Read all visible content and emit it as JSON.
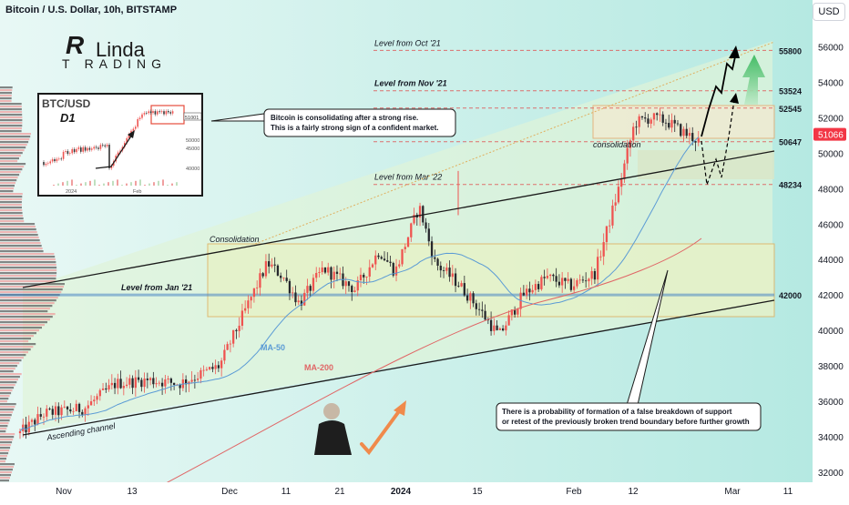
{
  "header": {
    "title": "Bitcoin / U.S. Dollar, 10h, BITSTAMP",
    "currency": "USD"
  },
  "logo": {
    "mark": "R",
    "text1": "Linda",
    "text2": "T",
    "text3": "RADING"
  },
  "inset": {
    "title": "BTC/USD",
    "timeframe": "D1",
    "price_tag": "51001",
    "ticks": [
      "50000",
      "45000",
      "40000"
    ],
    "xlabels": [
      "2024",
      "Feb"
    ]
  },
  "callouts": {
    "top": [
      "Bitcoin is consolidating after a strong rise.",
      "This is a fairly strong sign of a confident market."
    ],
    "bottom": [
      "There is a probability of formation of a false breakdown of support",
      "or retest of the previously broken trend boundary before further growth"
    ]
  },
  "colors": {
    "up": "#ef5350",
    "down": "#26282d",
    "channel_fill": "#dff3d8",
    "box_fill": "#e6f2c8",
    "box_border": "#e0b060",
    "ma50": "#5b9bd5",
    "ma200": "#e06666",
    "level": "#e05050",
    "level_blue": "#4a86c5",
    "current_price_bg": "#f23645"
  },
  "chart_data": {
    "type": "candlestick",
    "title": "Bitcoin / U.S. Dollar, 10h, BITSTAMP",
    "y_axis": {
      "ticks": [
        32000,
        34000,
        36000,
        38000,
        40000,
        42000,
        44000,
        46000,
        48000,
        50000,
        52000,
        54000,
        56000
      ],
      "range": [
        30800,
        57500
      ],
      "side": "right",
      "unit": "USD"
    },
    "x_axis": {
      "labels": [
        "Nov",
        "13",
        "Dec",
        "11",
        "21",
        "2024",
        "15",
        "Feb",
        "12",
        "Mar",
        "11"
      ],
      "bold_label": "2024"
    },
    "price_levels": [
      {
        "label": "Level from Oct '21",
        "value": 55800,
        "style": "dashed"
      },
      {
        "label": "Level from Nov '21",
        "value": 53524,
        "style": "dashed"
      },
      {
        "label": "",
        "value": 52545,
        "style": "dashed"
      },
      {
        "label": "",
        "value": 50647,
        "style": "dashed"
      },
      {
        "label": "Level from Mar '22",
        "value": 48234,
        "style": "dashed"
      },
      {
        "label": "Level from Jan '21",
        "value": 42000,
        "style": "solid"
      }
    ],
    "current_price": 51066,
    "annotations": [
      "Consolidation",
      "consolidation",
      "Ascending channel",
      "MA-50",
      "MA-200"
    ],
    "path_anchors": [
      {
        "x": 0.0,
        "price": 34200
      },
      {
        "x": 0.03,
        "price": 35300
      },
      {
        "x": 0.08,
        "price": 35600
      },
      {
        "x": 0.12,
        "price": 37000
      },
      {
        "x": 0.16,
        "price": 37200
      },
      {
        "x": 0.2,
        "price": 37000
      },
      {
        "x": 0.25,
        "price": 38000
      },
      {
        "x": 0.29,
        "price": 41900
      },
      {
        "x": 0.31,
        "price": 43800
      },
      {
        "x": 0.33,
        "price": 43000
      },
      {
        "x": 0.35,
        "price": 41500
      },
      {
        "x": 0.38,
        "price": 43500
      },
      {
        "x": 0.42,
        "price": 42300
      },
      {
        "x": 0.45,
        "price": 44500
      },
      {
        "x": 0.47,
        "price": 43300
      },
      {
        "x": 0.5,
        "price": 47000
      },
      {
        "x": 0.52,
        "price": 43800
      },
      {
        "x": 0.55,
        "price": 42600
      },
      {
        "x": 0.57,
        "price": 41500
      },
      {
        "x": 0.6,
        "price": 39700
      },
      {
        "x": 0.63,
        "price": 42000
      },
      {
        "x": 0.66,
        "price": 43000
      },
      {
        "x": 0.69,
        "price": 42500
      },
      {
        "x": 0.72,
        "price": 43200
      },
      {
        "x": 0.75,
        "price": 48000
      },
      {
        "x": 0.77,
        "price": 51700
      },
      {
        "x": 0.79,
        "price": 52000
      },
      {
        "x": 0.81,
        "price": 51800
      },
      {
        "x": 0.83,
        "price": 51200
      },
      {
        "x": 0.85,
        "price": 50700
      }
    ],
    "grid": false
  }
}
